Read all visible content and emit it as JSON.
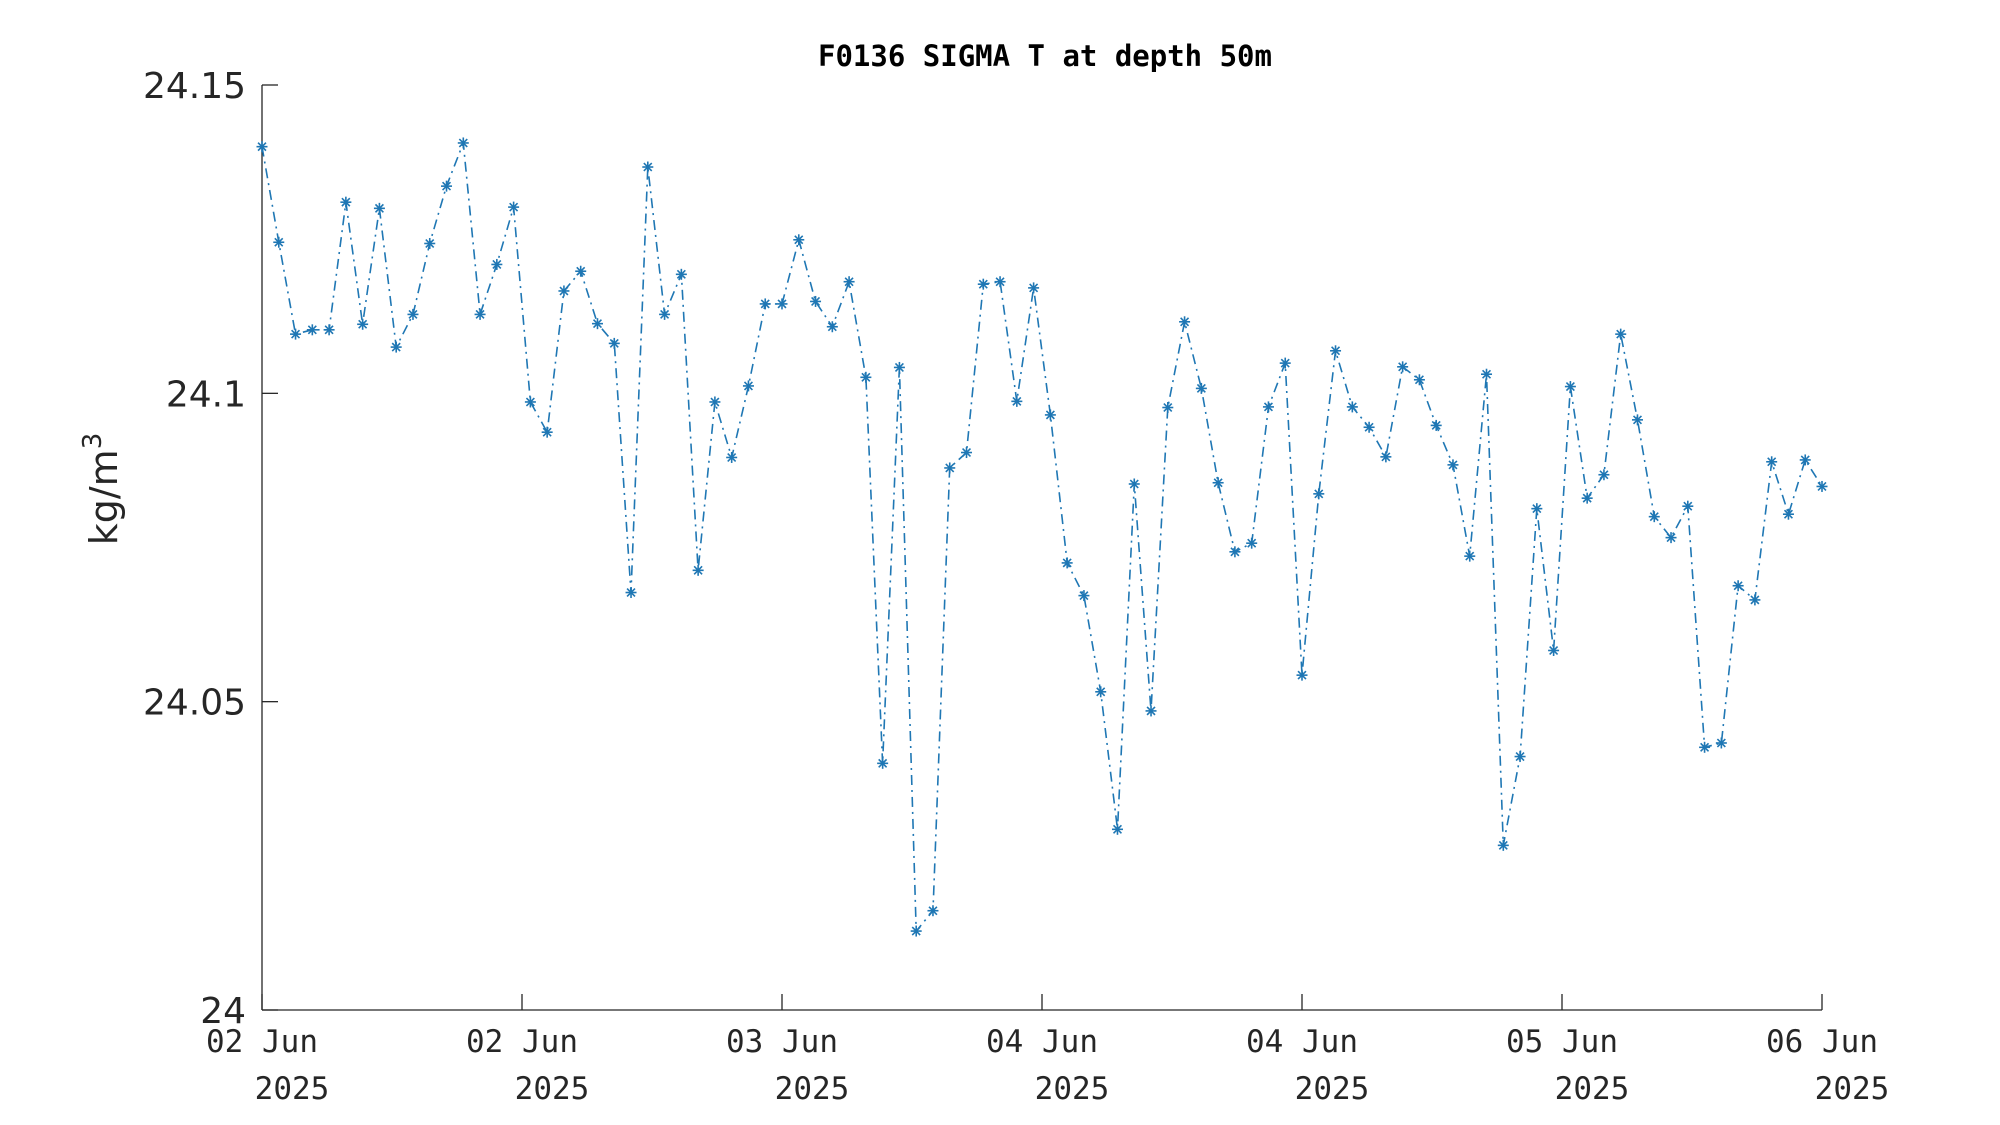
{
  "chart_data": {
    "type": "line",
    "title": "F0136 SIGMA T at depth 50m",
    "ylabel": "kg/m",
    "ylabel_superscript": "3",
    "xlabel": "",
    "ylim": [
      24.0,
      24.15
    ],
    "yticks": [
      {
        "value": 24.0,
        "label": "24"
      },
      {
        "value": 24.05,
        "label": "24.05"
      },
      {
        "value": 24.1,
        "label": "24.1"
      },
      {
        "value": 24.15,
        "label": "24.15"
      }
    ],
    "xlim_days": [
      0,
      6
    ],
    "xticks": [
      {
        "value": 0,
        "line1": "02 Jun",
        "line2": "2025"
      },
      {
        "value": 1,
        "line1": "02 Jun",
        "line2": "2025"
      },
      {
        "value": 2,
        "line1": "03 Jun",
        "line2": "2025"
      },
      {
        "value": 3,
        "line1": "04 Jun",
        "line2": "2025"
      },
      {
        "value": 4,
        "line1": "04 Jun",
        "line2": "2025"
      },
      {
        "value": 5,
        "line1": "05 Jun",
        "line2": "2025"
      },
      {
        "value": 6,
        "line1": "06 Jun",
        "line2": "2025"
      }
    ],
    "line_style": "dash-dot",
    "marker": "asterisk",
    "series": [
      {
        "color": "#1f77b4",
        "y": [
          24.14,
          24.1245,
          24.1096,
          24.1103,
          24.1103,
          24.131,
          24.1112,
          24.13,
          24.1075,
          24.1128,
          24.1243,
          24.1336,
          24.1406,
          24.1128,
          24.1209,
          24.1302,
          24.0986,
          24.0937,
          24.1166,
          24.1198,
          24.1113,
          24.1081,
          24.0677,
          24.1367,
          24.1128,
          24.1193,
          24.0713,
          24.0986,
          24.0896,
          24.1012,
          24.1145,
          24.1145,
          24.1249,
          24.1149,
          24.1108,
          24.1181,
          24.1026,
          24.04,
          24.1042,
          24.0128,
          24.0161,
          24.0879,
          24.0904,
          24.1177,
          24.1181,
          24.0987,
          24.1171,
          24.0965,
          24.0725,
          24.0672,
          24.0516,
          24.0293,
          24.0853,
          24.0485,
          24.0977,
          24.1116,
          24.1008,
          24.0855,
          24.0743,
          24.0757,
          24.0978,
          24.1049,
          24.0543,
          24.0837,
          24.1069,
          24.0978,
          24.0945,
          24.0897,
          24.1043,
          24.1022,
          24.0948,
          24.0884,
          24.0736,
          24.1031,
          24.0267,
          24.0411,
          24.0813,
          24.0583,
          24.1011,
          24.083,
          24.0868,
          24.1096,
          24.0957,
          24.08,
          24.0766,
          24.0817,
          24.0426,
          24.0433,
          24.0688,
          24.0665,
          24.0889,
          24.0804,
          24.0892,
          24.0849
        ]
      }
    ],
    "grid": false,
    "legend": "none"
  }
}
